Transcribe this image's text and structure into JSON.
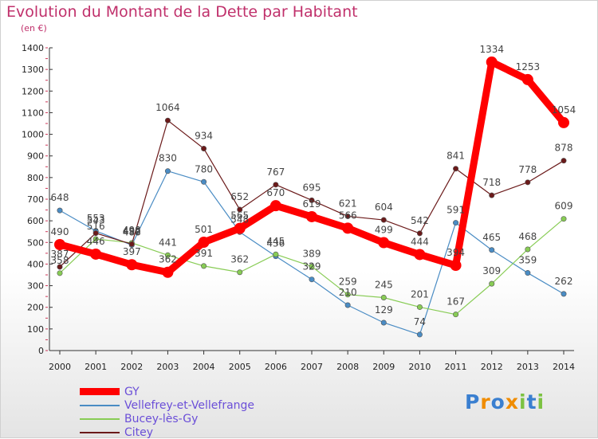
{
  "chart_data": {
    "type": "line",
    "title": "Evolution du Montant de la Dette par Habitant",
    "unit_label": "(en €)",
    "x": [
      "2000",
      "2001",
      "2002",
      "2003",
      "2004",
      "2005",
      "2006",
      "2007",
      "2008",
      "2009",
      "2010",
      "2011",
      "2012",
      "2013",
      "2014"
    ],
    "ylim": [
      0,
      1400
    ],
    "yticks": [
      0,
      100,
      200,
      300,
      400,
      500,
      600,
      700,
      800,
      900,
      1000,
      1100,
      1200,
      1300,
      1400
    ],
    "grid": false,
    "legend_position": "bottom-left",
    "series": [
      {
        "name": "GY",
        "color": "#ff0000",
        "values": [
          490,
          446,
          397,
          362,
          501,
          565,
          670,
          619,
          566,
          499,
          444,
          394,
          1334,
          1253,
          1054
        ]
      },
      {
        "name": "Vellefrey-et-Vellefrange",
        "color": "#4a8cc4",
        "values": [
          648,
          553,
          488,
          830,
          780,
          548,
          436,
          329,
          210,
          129,
          74,
          591,
          465,
          359,
          262
        ]
      },
      {
        "name": "Bucey-lès-Gy",
        "color": "#88cc55",
        "values": [
          358,
          516,
          498,
          441,
          391,
          362,
          445,
          389,
          259,
          245,
          201,
          167,
          309,
          468,
          609
        ]
      },
      {
        "name": "Citey",
        "color": "#6b1a1a",
        "values": [
          387,
          543,
          492,
          1064,
          934,
          652,
          767,
          695,
          621,
          604,
          542,
          841,
          718,
          778,
          878
        ]
      }
    ]
  },
  "brand": {
    "letters": [
      "P",
      "r",
      "o",
      "x",
      "i",
      "t",
      "i"
    ],
    "colors": [
      "#3a7fd0",
      "#f08c00",
      "#3a7fd0",
      "#f08c00",
      "#7cc242",
      "#3a7fd0",
      "#7cc242"
    ]
  }
}
